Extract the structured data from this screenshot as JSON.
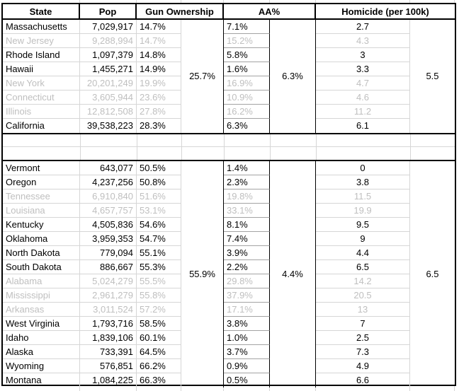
{
  "table": {
    "headers": {
      "state": "State",
      "pop": "Pop",
      "gun": "Gun Ownership",
      "aa": "AA%",
      "homicide": "Homicide (per 100k)"
    },
    "blocks": [
      {
        "gun_avg": "25.7%",
        "aa_avg": "6.3%",
        "hom_avg": "5.5",
        "rows": [
          {
            "state": "Massachusetts",
            "pop": "7,029,917",
            "gun": "14.7%",
            "aa": "7.1%",
            "hom": "2.7",
            "dimmed": false
          },
          {
            "state": "New Jersey",
            "pop": "9,288,994",
            "gun": "14.7%",
            "aa": "15.2%",
            "hom": "4.3",
            "dimmed": true
          },
          {
            "state": "Rhode Island",
            "pop": "1,097,379",
            "gun": "14.8%",
            "aa": "5.8%",
            "hom": "3",
            "dimmed": false
          },
          {
            "state": "Hawaii",
            "pop": "1,455,271",
            "gun": "14.9%",
            "aa": "1.6%",
            "hom": "3.3",
            "dimmed": false
          },
          {
            "state": "New York",
            "pop": "20,201,249",
            "gun": "19.9%",
            "aa": "16.9%",
            "hom": "4.7",
            "dimmed": true
          },
          {
            "state": "Connecticut",
            "pop": "3,605,944",
            "gun": "23.6%",
            "aa": "10.9%",
            "hom": "4.6",
            "dimmed": true
          },
          {
            "state": "Illinois",
            "pop": "12,812,508",
            "gun": "27.8%",
            "aa": "16.2%",
            "hom": "11.2",
            "dimmed": true
          },
          {
            "state": "California",
            "pop": "39,538,223",
            "gun": "28.3%",
            "aa": "6.3%",
            "hom": "6.1",
            "dimmed": false
          }
        ]
      },
      {
        "gun_avg": "55.9%",
        "aa_avg": "4.4%",
        "hom_avg": "6.5",
        "rows": [
          {
            "state": "Vermont",
            "pop": "643,077",
            "gun": "50.5%",
            "aa": "1.4%",
            "hom": "0",
            "dimmed": false
          },
          {
            "state": "Oregon",
            "pop": "4,237,256",
            "gun": "50.8%",
            "aa": "2.3%",
            "hom": "3.8",
            "dimmed": false
          },
          {
            "state": "Tennessee",
            "pop": "6,910,840",
            "gun": "51.6%",
            "aa": "19.8%",
            "hom": "11.5",
            "dimmed": true
          },
          {
            "state": "Louisiana",
            "pop": "4,657,757",
            "gun": "53.1%",
            "aa": "33.1%",
            "hom": "19.9",
            "dimmed": true
          },
          {
            "state": "Kentucky",
            "pop": "4,505,836",
            "gun": "54.6%",
            "aa": "8.1%",
            "hom": "9.5",
            "dimmed": false
          },
          {
            "state": "Oklahoma",
            "pop": "3,959,353",
            "gun": "54.7%",
            "aa": "7.4%",
            "hom": "9",
            "dimmed": false
          },
          {
            "state": "North Dakota",
            "pop": "779,094",
            "gun": "55.1%",
            "aa": "3.9%",
            "hom": "4.4",
            "dimmed": false
          },
          {
            "state": "South Dakota",
            "pop": "886,667",
            "gun": "55.3%",
            "aa": "2.2%",
            "hom": "6.5",
            "dimmed": false
          },
          {
            "state": "Alabama",
            "pop": "5,024,279",
            "gun": "55.5%",
            "aa": "29.8%",
            "hom": "14.2",
            "dimmed": true
          },
          {
            "state": "Mississippi",
            "pop": "2,961,279",
            "gun": "55.8%",
            "aa": "37.9%",
            "hom": "20.5",
            "dimmed": true
          },
          {
            "state": "Arkansas",
            "pop": "3,011,524",
            "gun": "57.2%",
            "aa": "17.1%",
            "hom": "13",
            "dimmed": true
          },
          {
            "state": "West Virginia",
            "pop": "1,793,716",
            "gun": "58.5%",
            "aa": "3.8%",
            "hom": "7",
            "dimmed": false
          },
          {
            "state": "Idaho",
            "pop": "1,839,106",
            "gun": "60.1%",
            "aa": "1.0%",
            "hom": "2.5",
            "dimmed": false
          },
          {
            "state": "Alaska",
            "pop": "733,391",
            "gun": "64.5%",
            "aa": "3.7%",
            "hom": "7.3",
            "dimmed": false
          },
          {
            "state": "Wyoming",
            "pop": "576,851",
            "gun": "66.2%",
            "aa": "0.9%",
            "hom": "4.9",
            "dimmed": false
          },
          {
            "state": "Montana",
            "pop": "1,084,225",
            "gun": "66.3%",
            "aa": "0.5%",
            "hom": "6.6",
            "dimmed": false
          }
        ]
      }
    ]
  },
  "colors": {
    "text": "#000000",
    "dimmed_text": "#bfbfbf",
    "gridline": "#d6d6d6",
    "aa_gridline": "#a3a3a3",
    "border": "#000000"
  }
}
